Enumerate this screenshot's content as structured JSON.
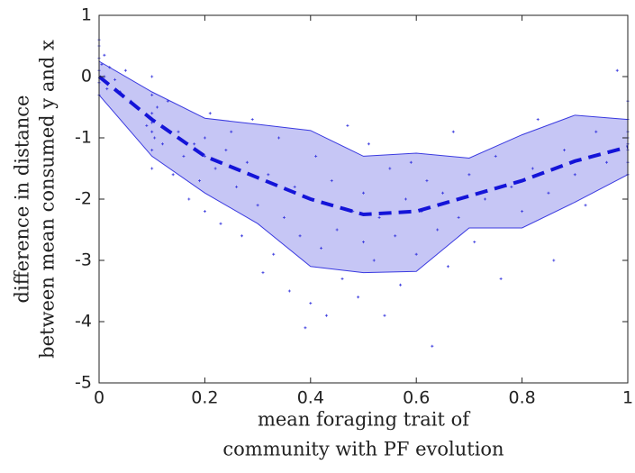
{
  "chart_data": {
    "type": "scatter",
    "xlabel": [
      "mean foraging trait of",
      "community with PF evolution"
    ],
    "ylabel": [
      "difference in distance",
      "between mean consumed y and x"
    ],
    "xlim": [
      0,
      1
    ],
    "ylim": [
      -5,
      1
    ],
    "xticks": [
      0,
      0.2,
      0.4,
      0.6,
      0.8,
      1
    ],
    "yticks": [
      -5,
      -4,
      -3,
      -2,
      -1,
      0,
      1
    ],
    "band": {
      "color": "#c6c6f5",
      "edge": "#3a3ae0",
      "x": [
        0,
        0.1,
        0.2,
        0.3,
        0.4,
        0.5,
        0.6,
        0.7,
        0.8,
        0.9,
        1
      ],
      "upper": [
        0.25,
        -0.25,
        -0.68,
        -0.78,
        -0.88,
        -1.3,
        -1.25,
        -1.33,
        -0.95,
        -0.63,
        -0.7
      ],
      "lower": [
        -0.3,
        -1.3,
        -1.9,
        -2.4,
        -3.1,
        -3.2,
        -3.18,
        -2.47,
        -2.47,
        -2.05,
        -1.6
      ]
    },
    "mean": {
      "color": "#1414d8",
      "x": [
        0,
        0.1,
        0.2,
        0.3,
        0.4,
        0.5,
        0.6,
        0.7,
        0.8,
        0.9,
        1
      ],
      "values": [
        0,
        -0.7,
        -1.3,
        -1.65,
        -2.0,
        -2.25,
        -2.2,
        -1.95,
        -1.7,
        -1.38,
        -1.15
      ]
    },
    "points": {
      "color": "#3333dd",
      "x": [
        0,
        0,
        0,
        0,
        0,
        0,
        0.005,
        0.01,
        0.015,
        0.02,
        0.01,
        0.03,
        0.04,
        0.05,
        0.06,
        0.1,
        0.1,
        0.1,
        0.1,
        0.1,
        0.1,
        0.1,
        0.105,
        0.11,
        0.09,
        0.12,
        0.13,
        0.14,
        0.15,
        0.16,
        0.17,
        0.18,
        0.19,
        0.2,
        0.2,
        0.2,
        0.21,
        0.22,
        0.23,
        0.24,
        0.25,
        0.26,
        0.27,
        0.28,
        0.29,
        0.3,
        0.31,
        0.32,
        0.33,
        0.34,
        0.35,
        0.36,
        0.37,
        0.38,
        0.39,
        0.4,
        0.4,
        0.41,
        0.42,
        0.43,
        0.44,
        0.45,
        0.46,
        0.47,
        0.48,
        0.49,
        0.5,
        0.5,
        0.51,
        0.52,
        0.53,
        0.54,
        0.55,
        0.56,
        0.57,
        0.58,
        0.59,
        0.6,
        0.61,
        0.62,
        0.63,
        0.64,
        0.65,
        0.66,
        0.67,
        0.68,
        0.7,
        0.71,
        0.73,
        0.75,
        0.76,
        0.78,
        0.8,
        0.82,
        0.83,
        0.85,
        0.86,
        0.88,
        0.9,
        0.92,
        0.94,
        0.96,
        0.98,
        1,
        1,
        1,
        1,
        1,
        1,
        1,
        1
      ],
      "y": [
        0.5,
        0.3,
        0.1,
        -0.1,
        -0.3,
        0.6,
        0.2,
        0.0,
        -0.2,
        0.15,
        0.35,
        -0.05,
        -0.25,
        0.1,
        -0.4,
        -0.3,
        -0.6,
        -0.9,
        -1.2,
        -1.5,
        0.0,
        -0.75,
        -1.0,
        -0.5,
        -0.8,
        -1.1,
        -0.4,
        -1.6,
        -0.9,
        -1.3,
        -2.0,
        -1.1,
        -1.7,
        -1.3,
        -1.0,
        -2.2,
        -0.6,
        -1.5,
        -2.4,
        -1.2,
        -0.9,
        -1.8,
        -2.6,
        -1.4,
        -0.7,
        -2.1,
        -3.2,
        -1.6,
        -2.9,
        -1.0,
        -2.3,
        -3.5,
        -1.8,
        -2.6,
        -4.1,
        -2.0,
        -3.7,
        -1.3,
        -2.8,
        -3.9,
        -1.7,
        -2.5,
        -3.3,
        -0.8,
        -2.2,
        -3.6,
        -1.9,
        -2.7,
        -1.1,
        -3.0,
        -2.3,
        -3.9,
        -1.5,
        -2.6,
        -3.4,
        -2.0,
        -1.4,
        -2.9,
        -2.2,
        -1.7,
        -4.4,
        -2.5,
        -1.9,
        -3.1,
        -0.9,
        -2.3,
        -1.6,
        -2.7,
        -2.0,
        -1.3,
        -3.3,
        -1.8,
        -2.2,
        -1.5,
        -0.7,
        -1.9,
        -3.0,
        -1.2,
        -1.6,
        -2.1,
        -0.9,
        -1.4,
        0.1,
        -0.4,
        -0.7,
        -1.0,
        -1.2,
        -1.4,
        -1.6,
        -0.9,
        -1.1
      ]
    }
  }
}
